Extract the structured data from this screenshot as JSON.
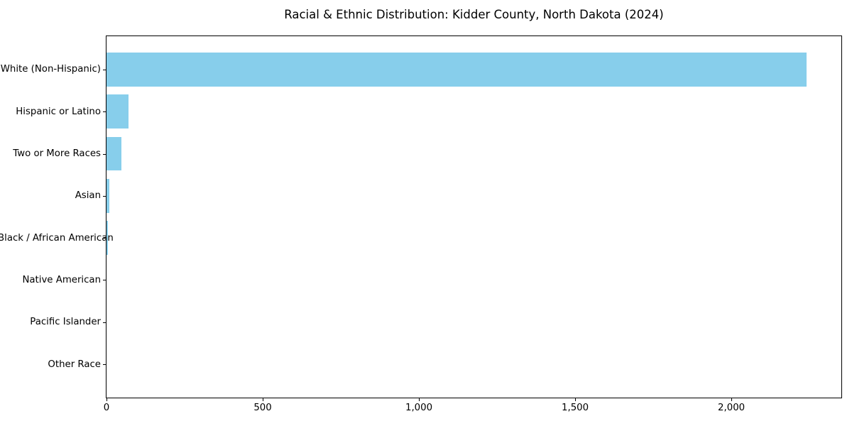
{
  "chart_data": {
    "type": "bar",
    "orientation": "horizontal",
    "title": "Racial & Ethnic Distribution: Kidder County, North Dakota (2024)",
    "categories": [
      "White (Non-Hispanic)",
      "Hispanic or Latino",
      "Two or More Races",
      "Asian",
      "Black / African American",
      "Native American",
      "Pacific Islander",
      "Other Race"
    ],
    "values": [
      2240,
      70,
      48,
      8,
      5,
      0,
      0,
      0
    ],
    "xlabel": "",
    "ylabel": "",
    "xlim": [
      0,
      2352
    ],
    "xticks": {
      "values": [
        0,
        500,
        1000,
        1500,
        2000
      ],
      "labels": [
        "0",
        "500",
        "1,000",
        "1,500",
        "2,000"
      ]
    },
    "grid": false,
    "legend": false,
    "bar_color": "#87CEEB",
    "spine_color": "#000000",
    "text_color": "#000000",
    "background_color": "#ffffff"
  }
}
